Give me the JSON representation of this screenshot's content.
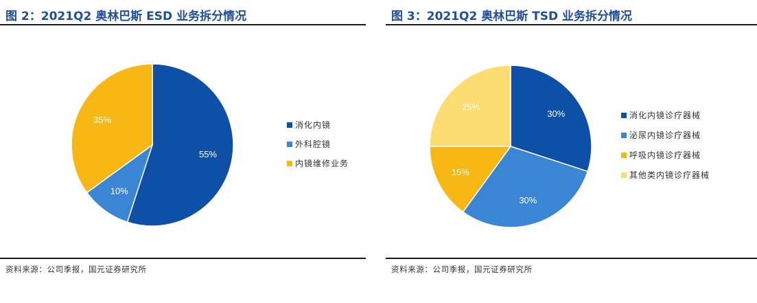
{
  "chart_data": [
    {
      "type": "pie",
      "title": "图 2：2021Q2 奥林巴斯 ESD 业务拆分情况",
      "source": "资料来源：公司季报，国元证券研究所",
      "legend_position": "right",
      "slices": [
        {
          "label": "消化内镜",
          "value": 55,
          "display": "55%",
          "color": "#0e4fa8"
        },
        {
          "label": "外科腔镜",
          "value": 10,
          "display": "10%",
          "color": "#3a86d4"
        },
        {
          "label": "内镜维修业务",
          "value": 35,
          "display": "35%",
          "color": "#f7b815"
        }
      ]
    },
    {
      "type": "pie",
      "title": "图 3：2021Q2 奥林巴斯 TSD 业务拆分情况",
      "source": "资料来源：公司季报，国元证券研究所",
      "legend_position": "right",
      "slices": [
        {
          "label": "消化内镜诊疗器械",
          "value": 30,
          "display": "30%",
          "color": "#0e4fa8"
        },
        {
          "label": "泌尿内镜诊疗器械",
          "value": 30,
          "display": "30%",
          "color": "#3a86d4"
        },
        {
          "label": "呼吸内镜诊疗器械",
          "value": 15,
          "display": "15%",
          "color": "#f7b815"
        },
        {
          "label": "其他类内镜诊疗器械",
          "value": 25,
          "display": "25%",
          "color": "#fddc72"
        }
      ]
    }
  ]
}
